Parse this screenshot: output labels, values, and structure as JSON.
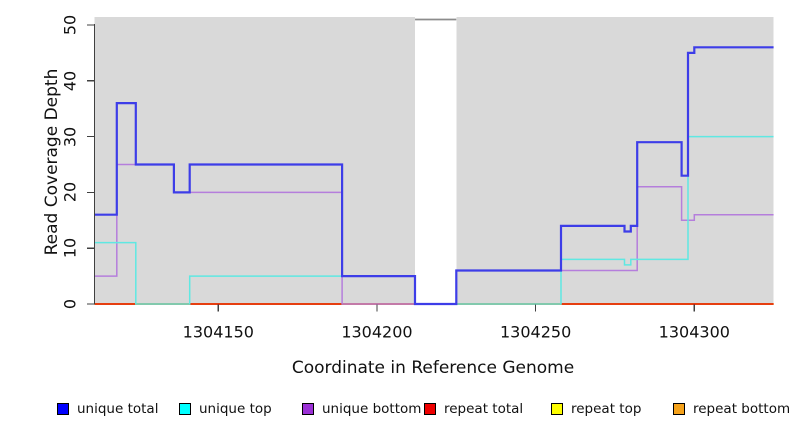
{
  "chart_data": {
    "type": "line",
    "subtype": "step",
    "title": "",
    "xlabel": "Coordinate in Reference Genome",
    "ylabel": "Read Coverage Depth",
    "x_ticks": [
      1304150,
      1304200,
      1304250,
      1304300
    ],
    "y_ticks": [
      0,
      10,
      20,
      30,
      40,
      50
    ],
    "x_range": [
      1304111,
      1304325
    ],
    "y_range": [
      0,
      51
    ],
    "grid": false,
    "legend_position": "bottom",
    "plot_background_color": "#d9d9d9",
    "masked_gap": {
      "start": 1304212,
      "end": 1304225,
      "cap_line_color": "#8c8c8c"
    },
    "series": [
      {
        "name": "unique total",
        "line_color": "#3d3de8",
        "legend_color": "#0000ff",
        "stroke_width": 2.2,
        "steps": [
          [
            1304111,
            16
          ],
          [
            1304118,
            36
          ],
          [
            1304124,
            25
          ],
          [
            1304136,
            20
          ],
          [
            1304141,
            25
          ],
          [
            1304189,
            5
          ],
          [
            1304212,
            0
          ],
          [
            1304225,
            6
          ],
          [
            1304258,
            14
          ],
          [
            1304278,
            13
          ],
          [
            1304280,
            14
          ],
          [
            1304282,
            29
          ],
          [
            1304296,
            23
          ],
          [
            1304298,
            45
          ],
          [
            1304300,
            46
          ]
        ]
      },
      {
        "name": "unique top",
        "line_color": "#5fe8e2",
        "legend_color": "#00ffff",
        "stroke_width": 1.5,
        "steps": [
          [
            1304111,
            11
          ],
          [
            1304124,
            0
          ],
          [
            1304141,
            5
          ],
          [
            1304212,
            0
          ],
          [
            1304258,
            8
          ],
          [
            1304278,
            7
          ],
          [
            1304280,
            8
          ],
          [
            1304298,
            30
          ]
        ]
      },
      {
        "name": "unique bottom",
        "line_color": "#b57edc",
        "legend_color": "#9b30d6",
        "stroke_width": 1.5,
        "steps": [
          [
            1304111,
            5
          ],
          [
            1304118,
            25
          ],
          [
            1304136,
            20
          ],
          [
            1304189,
            0
          ],
          [
            1304225,
            6
          ],
          [
            1304282,
            21
          ],
          [
            1304296,
            15
          ],
          [
            1304300,
            16
          ]
        ]
      },
      {
        "name": "repeat total",
        "line_color": "#e01010",
        "legend_color": "#ee0000",
        "stroke_width": 1.5,
        "steps": [
          [
            1304111,
            0
          ]
        ]
      },
      {
        "name": "repeat top",
        "line_color": "#f5f500",
        "legend_color": "#fdfd00",
        "stroke_width": 1.5,
        "steps": [
          [
            1304111,
            0
          ]
        ]
      },
      {
        "name": "repeat bottom",
        "line_color": "#ff9d1e",
        "legend_color": "#f5a21b",
        "stroke_width": 2,
        "steps": [
          [
            1304111,
            0
          ]
        ]
      }
    ]
  }
}
